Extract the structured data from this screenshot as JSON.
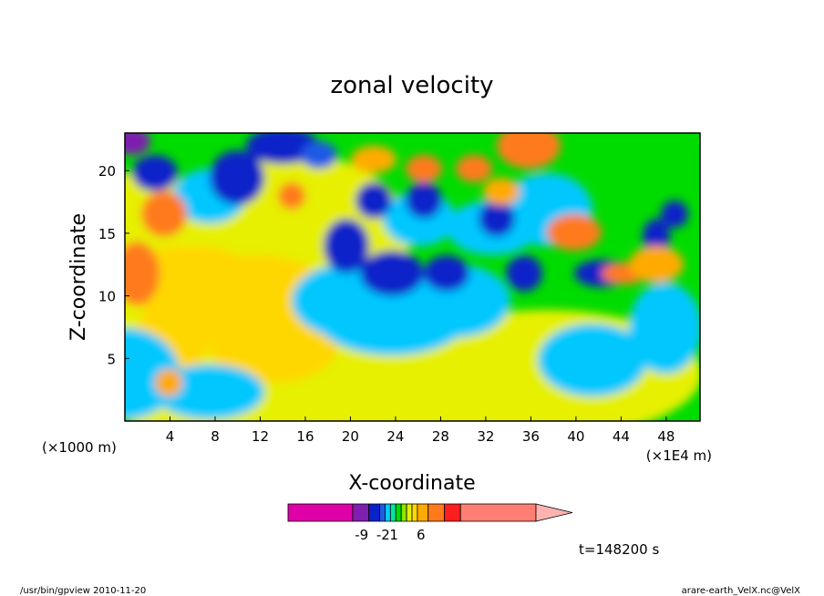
{
  "chart_data": {
    "type": "heatmap",
    "title": "zonal velocity",
    "xlabel": "X-coordinate",
    "ylabel": "Z-coordinate",
    "x_unit_left": "(×1000 m)",
    "x_unit_right": "(×1E4 m)",
    "x_ticks": [
      "4",
      "8",
      "12",
      "16",
      "20",
      "24",
      "28",
      "32",
      "36",
      "40",
      "44",
      "48"
    ],
    "y_ticks": [
      "5",
      "10",
      "15",
      "20"
    ],
    "xlim": [
      0,
      51
    ],
    "ylim": [
      0,
      23
    ],
    "time_label": "t=148200 s",
    "colorbar": {
      "colors": [
        "#e000a8",
        "#7f1fb0",
        "#0a23c8",
        "#1e5ae6",
        "#00c8ff",
        "#00e6a0",
        "#00dc00",
        "#8ce600",
        "#e6f000",
        "#ffd700",
        "#ffaa00",
        "#ff7a1a",
        "#ff1e1e",
        "#ff7f74"
      ],
      "widths": [
        12,
        3,
        2,
        1,
        1,
        1,
        1,
        1,
        1,
        1,
        2,
        3,
        3,
        14
      ],
      "tick_labels": [
        "-9",
        "-2",
        "1",
        "6"
      ],
      "tick_values": [
        -9,
        -2,
        1,
        6
      ]
    }
  },
  "footer": {
    "left": "/usr/bin/gpview   2010-11-20",
    "right": "arare-earth_VelX.nc@VelX"
  }
}
